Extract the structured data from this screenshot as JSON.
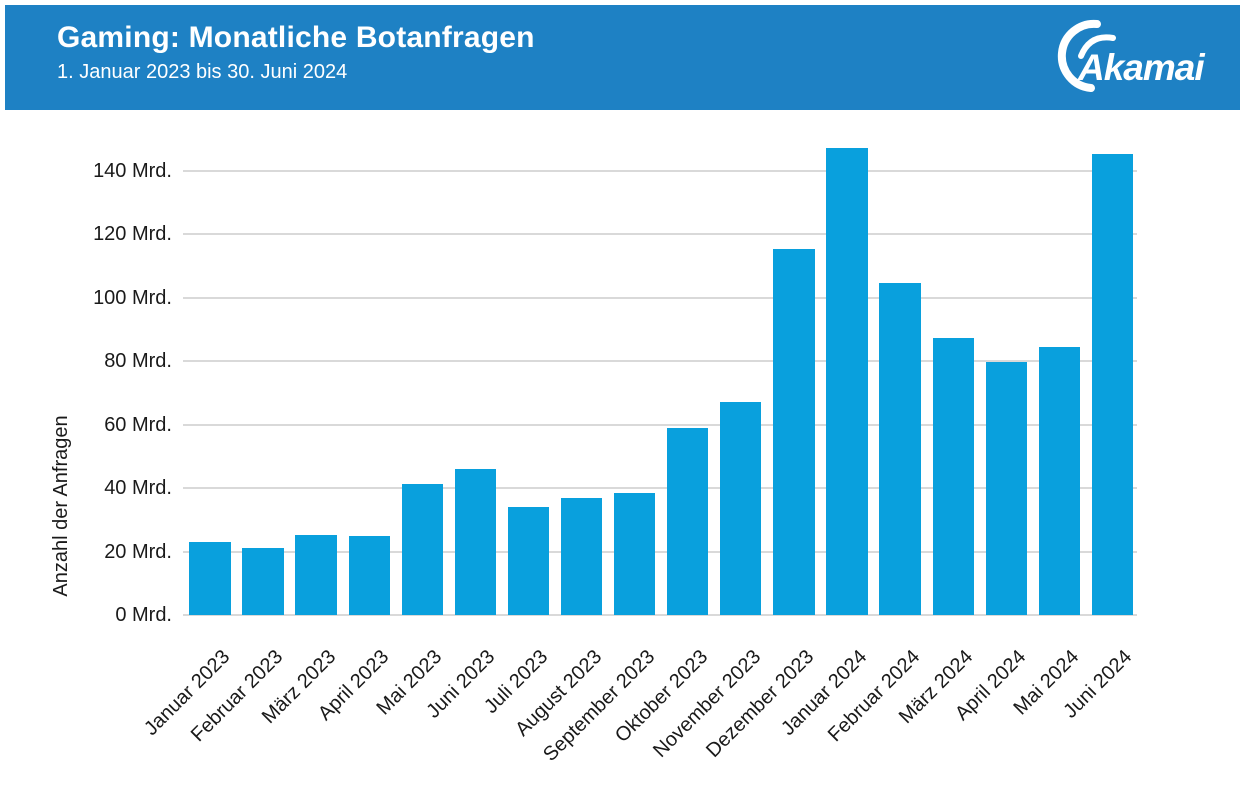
{
  "header": {
    "title": "Gaming: Monatliche Botanfragen",
    "subtitle": "1. Januar 2023 bis 30. Juni 2024",
    "logo_text": "Akamai"
  },
  "colors": {
    "header_bg": "#1E81C4",
    "header_text": "#FFFFFF",
    "bar": "#09A0DD",
    "gridline": "#D9D9D9",
    "axis_text": "#1A1A1A"
  },
  "chart_data": {
    "type": "bar",
    "title": "Gaming: Monatliche Botanfragen",
    "subtitle": "1. Januar 2023 bis 30. Juni 2024",
    "categories": [
      "Januar 2023",
      "Februar 2023",
      "März 2023",
      "April 2023",
      "Mai 2023",
      "Juni 2023",
      "Juli 2023",
      "August 2023",
      "September 2023",
      "Oktober 2023",
      "November 2023",
      "Dezember 2023",
      "Januar 2024",
      "Februar 2024",
      "März 2024",
      "April 2024",
      "Mai 2024",
      "Juni 2024"
    ],
    "values": [
      23,
      21,
      25.2,
      24.8,
      41.4,
      46,
      34,
      36.9,
      38.6,
      58.8,
      67,
      115.3,
      147.1,
      104.5,
      87.3,
      79.8,
      84.5,
      145.4
    ],
    "unit": "Mrd.",
    "xlabel": "",
    "ylabel": "Anzahl der Anfragen",
    "ylim": [
      0,
      150
    ],
    "yticks": [
      0,
      20,
      40,
      60,
      80,
      100,
      120,
      140
    ],
    "ytick_labels": [
      "0 Mrd.",
      "20 Mrd.",
      "40 Mrd.",
      "60 Mrd.",
      "80 Mrd.",
      "100 Mrd.",
      "120 Mrd.",
      "140 Mrd."
    ],
    "grid": "horizontal",
    "legend": "none",
    "bar_color": "#09A0DD"
  }
}
